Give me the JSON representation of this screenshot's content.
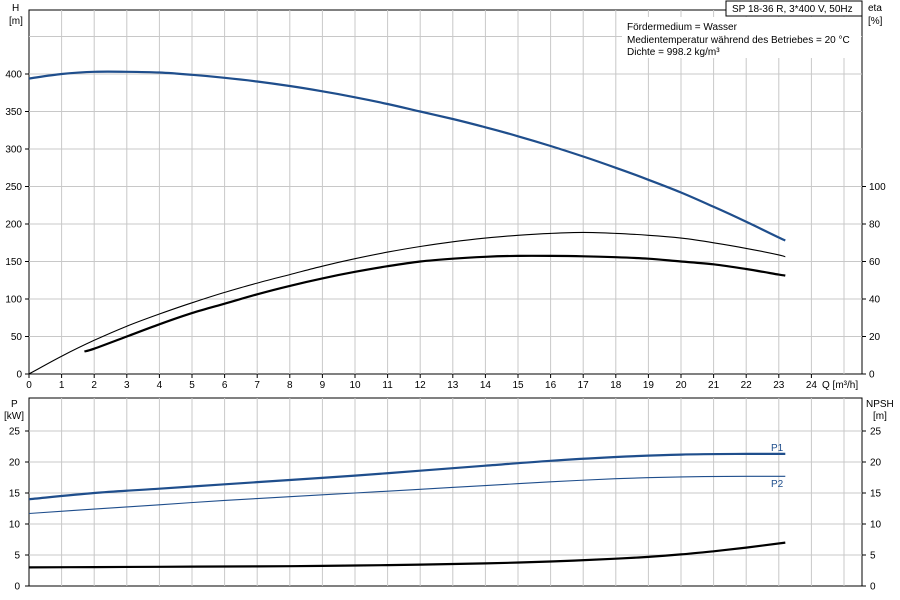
{
  "header": {
    "title": "SP 18-36 R, 3*400 V, 50Hz",
    "info_lines": [
      "Fördermedium = Wasser",
      "Medientemperatur während des Betriebes = 20 °C",
      "Dichte = 998.2 kg/m³"
    ]
  },
  "colors": {
    "grid": "#c8c8c8",
    "axis": "#000000",
    "blue": "#1f4e8c",
    "black": "#000000"
  },
  "chart_data": [
    {
      "type": "line",
      "x_axis": {
        "label": "Q [m³/h]",
        "range": [
          0,
          25
        ],
        "ticks": [
          0,
          1,
          2,
          3,
          4,
          5,
          6,
          7,
          8,
          9,
          10,
          11,
          12,
          13,
          14,
          15,
          16,
          17,
          18,
          19,
          20,
          21,
          22,
          23,
          24
        ]
      },
      "y_axis_left": {
        "label": "H",
        "unit": "[m]",
        "range": [
          0,
          400
        ],
        "ticks": [
          0,
          50,
          100,
          150,
          200,
          250,
          300,
          350,
          400
        ]
      },
      "y_axis_right": {
        "label": "eta",
        "unit": "[%]",
        "range": [
          0,
          100
        ],
        "ticks": [
          0,
          20,
          40,
          60,
          80,
          100
        ]
      },
      "grid": true,
      "series": [
        {
          "axis": "left",
          "style": "blue-thick",
          "x": [
            0,
            1,
            2,
            3,
            4,
            5,
            6,
            7,
            8,
            9,
            10,
            11,
            12,
            13,
            14,
            15,
            16,
            17,
            18,
            19,
            20,
            21,
            22,
            23,
            23.2
          ],
          "y": [
            394,
            400,
            403,
            403,
            402,
            399,
            395,
            390,
            384,
            377,
            369,
            360,
            350,
            340,
            329,
            317,
            304,
            290,
            275,
            259,
            242,
            223,
            203,
            182,
            178
          ]
        },
        {
          "axis": "right",
          "style": "black-thin",
          "x": [
            0,
            1,
            2,
            3,
            4,
            5,
            6,
            7,
            8,
            9,
            10,
            11,
            12,
            13,
            14,
            15,
            16,
            17,
            18,
            19,
            20,
            21,
            22,
            23,
            23.2
          ],
          "y": [
            0,
            9.5,
            18.0,
            25.5,
            32.0,
            38.0,
            43.5,
            48.5,
            53.0,
            57.5,
            61.5,
            65.0,
            68.0,
            70.5,
            72.5,
            74.0,
            75.0,
            75.5,
            75.0,
            74.0,
            72.5,
            70.0,
            67.0,
            63.5,
            62.5
          ]
        },
        {
          "axis": "right",
          "style": "black-thick",
          "x": [
            1.7,
            2,
            3,
            4,
            5,
            6,
            7,
            8,
            9,
            10,
            11,
            12,
            13,
            14,
            15,
            16,
            17,
            18,
            19,
            20,
            21,
            22,
            23,
            23.2
          ],
          "y": [
            12.0,
            13.5,
            20.0,
            26.5,
            32.5,
            37.5,
            42.5,
            47.0,
            51.0,
            54.5,
            57.5,
            60.0,
            61.5,
            62.5,
            63.0,
            63.0,
            62.8,
            62.3,
            61.5,
            60.0,
            58.5,
            56.0,
            53.0,
            52.5
          ]
        }
      ]
    },
    {
      "type": "line",
      "x_axis": {
        "label": "Q [m³/h]",
        "range": [
          0,
          25
        ]
      },
      "y_axis_left": {
        "label": "P",
        "unit": "[kW]",
        "range": [
          0,
          25
        ],
        "ticks": [
          0,
          5,
          10,
          15,
          20,
          25
        ]
      },
      "y_axis_right": {
        "label": "NPSH",
        "unit": "[m]",
        "range": [
          0,
          25
        ],
        "ticks": [
          0,
          5,
          10,
          15,
          20,
          25
        ]
      },
      "grid": true,
      "series": [
        {
          "name": "P1",
          "axis": "left",
          "style": "blue-thick",
          "x": [
            0,
            2,
            4,
            6,
            8,
            10,
            12,
            14,
            16,
            18,
            20,
            22,
            23.2
          ],
          "y": [
            14.0,
            15.0,
            15.7,
            16.4,
            17.1,
            17.8,
            18.6,
            19.4,
            20.2,
            20.8,
            21.2,
            21.3,
            21.3
          ]
        },
        {
          "name": "P2",
          "axis": "left",
          "style": "blue-thin",
          "x": [
            0,
            2,
            4,
            6,
            8,
            10,
            12,
            14,
            16,
            18,
            20,
            22,
            23.2
          ],
          "y": [
            11.7,
            12.4,
            13.1,
            13.8,
            14.4,
            15.0,
            15.6,
            16.2,
            16.8,
            17.3,
            17.6,
            17.7,
            17.7
          ]
        },
        {
          "axis": "right",
          "style": "black-thick",
          "x": [
            0,
            2,
            4,
            6,
            8,
            10,
            12,
            14,
            16,
            18,
            19,
            20,
            21,
            22,
            23.2
          ],
          "y": [
            3.0,
            3.05,
            3.1,
            3.15,
            3.2,
            3.3,
            3.45,
            3.65,
            3.95,
            4.4,
            4.7,
            5.1,
            5.6,
            6.2,
            7.0
          ]
        }
      ]
    }
  ]
}
